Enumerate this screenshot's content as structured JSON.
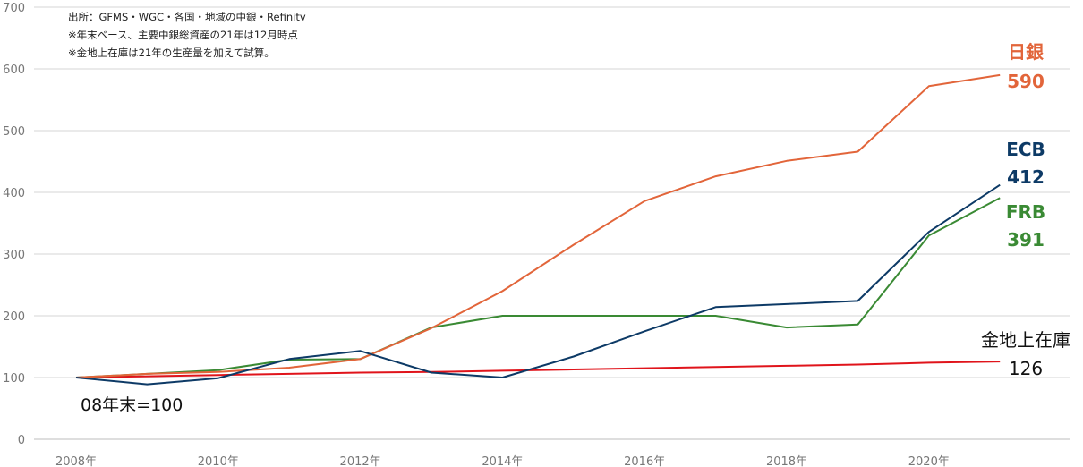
{
  "chart_data": {
    "type": "line",
    "x": [
      2008,
      2009,
      2010,
      2011,
      2012,
      2013,
      2014,
      2015,
      2016,
      2017,
      2018,
      2019,
      2020,
      2021
    ],
    "x_tick_labels": [
      "2008年",
      "2010年",
      "2012年",
      "2014年",
      "2016年",
      "2018年",
      "2020年"
    ],
    "x_tick_values": [
      2008,
      2010,
      2012,
      2014,
      2016,
      2018,
      2020
    ],
    "y_tick_labels": [
      "0",
      "100",
      "200",
      "300",
      "400",
      "500",
      "600",
      "700"
    ],
    "y_tick_values": [
      0,
      100,
      200,
      300,
      400,
      500,
      600,
      700
    ],
    "ylim": [
      0,
      700
    ],
    "grid": "horizontal",
    "source_notes": [
      "出所：GFMS・WGC・各国・地域の中銀・Refinitv",
      "※年末ベース、主要中銀総資産の21年は12月時点",
      "※金地上在庫は21年の生産量を加えて試算。"
    ],
    "baseline_label": "08年末=100",
    "series": [
      {
        "name": "日銀",
        "end_value_label": "590",
        "color": "#e2653a",
        "values": [
          100,
          106,
          109,
          116,
          130,
          180,
          240,
          315,
          386,
          426,
          451,
          466,
          572,
          590
        ]
      },
      {
        "name": "ECB",
        "end_value_label": "412",
        "color": "#0d3a66",
        "values": [
          100,
          89,
          99,
          130,
          143,
          108,
          100,
          134,
          175,
          214,
          219,
          224,
          336,
          412
        ]
      },
      {
        "name": "FRB",
        "end_value_label": "391",
        "color": "#3a8a34",
        "values": [
          100,
          106,
          112,
          129,
          130,
          181,
          200,
          200,
          200,
          200,
          181,
          186,
          330,
          391
        ]
      },
      {
        "name": "金地上在庫",
        "end_value_label": "126",
        "color": "#e0141b",
        "values": [
          100,
          102,
          104,
          106,
          108,
          109,
          111,
          113,
          115,
          117,
          119,
          121,
          124,
          126
        ]
      }
    ]
  }
}
